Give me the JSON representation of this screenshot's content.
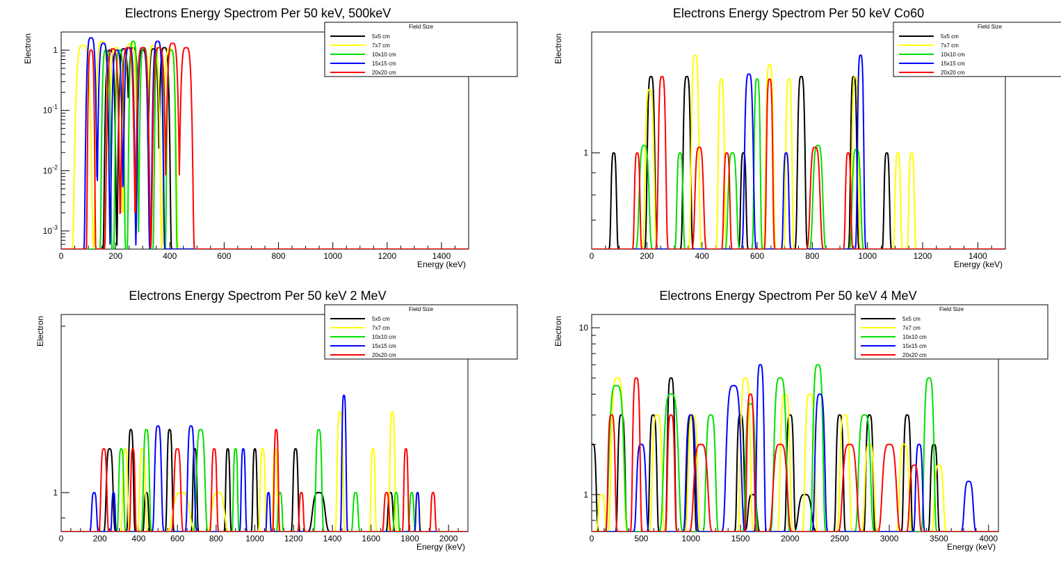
{
  "series_colors": {
    "5x5 cm": "#000000",
    "7x7 cm": "#ffff00",
    "10x10 cm": "#00e000",
    "15x15 cm": "#0000ff",
    "20x20 cm": "#ff0000"
  },
  "chart_data": [
    {
      "type": "line",
      "title": "Electrons Energy Spectrom Per 50 keV, 500keV",
      "xlabel": "Energy (keV)",
      "ylabel": "Electron",
      "xlim": [
        0,
        1500
      ],
      "ylim": [
        0.0005,
        2
      ],
      "yscale": "log",
      "xticks": [
        0,
        200,
        400,
        600,
        800,
        1000,
        1200,
        1400
      ],
      "yticks": [
        {
          "value": 1,
          "base": "1",
          "exp": ""
        },
        {
          "value": 0.1,
          "base": "10",
          "exp": "-1"
        },
        {
          "value": 0.01,
          "base": "10",
          "exp": "-2"
        },
        {
          "value": 0.001,
          "base": "10",
          "exp": "-3"
        }
      ],
      "grid": false,
      "legend": {
        "title": "Field Size",
        "position": "top-right"
      },
      "baseline": 0.0005,
      "series": [
        {
          "name": "5x5 cm",
          "peaks": [
            [
              180,
              1.0,
              12
            ],
            [
              230,
              1.05,
              12
            ],
            [
              265,
              1.1,
              12
            ],
            [
              300,
              1.0,
              12
            ],
            [
              340,
              1.05,
              12
            ],
            [
              380,
              1.1,
              12
            ]
          ],
          "end": 1500
        },
        {
          "name": "7x7 cm",
          "peaks": [
            [
              80,
              1.2,
              18
            ],
            [
              150,
              1.4,
              14
            ],
            [
              200,
              1.1,
              14
            ],
            [
              255,
              1.3,
              14
            ],
            [
              300,
              1.1,
              14
            ],
            [
              340,
              1.2,
              14
            ],
            [
              400,
              1.05,
              14
            ]
          ],
          "end": 1500
        },
        {
          "name": "10x10 cm",
          "peaks": [
            [
              165,
              1.0,
              10
            ],
            [
              215,
              1.0,
              10
            ],
            [
              265,
              1.4,
              10
            ],
            [
              305,
              1.1,
              10
            ],
            [
              360,
              1.1,
              10
            ],
            [
              405,
              1.0,
              10
            ]
          ],
          "end": 1500
        },
        {
          "name": "15x15 cm",
          "peaks": [
            [
              110,
              1.6,
              12
            ],
            [
              155,
              1.3,
              12
            ],
            [
              205,
              1.0,
              12
            ],
            [
              250,
              1.1,
              12
            ],
            [
              300,
              1.1,
              12
            ],
            [
              355,
              1.4,
              12
            ]
          ],
          "end": 1500
        },
        {
          "name": "20x20 cm",
          "peaks": [
            [
              110,
              1.0,
              8
            ],
            [
              190,
              1.05,
              14
            ],
            [
              245,
              1.1,
              14
            ],
            [
              300,
              1.1,
              14
            ],
            [
              360,
              1.1,
              14
            ],
            [
              410,
              1.3,
              14
            ],
            [
              460,
              1.1,
              14
            ]
          ],
          "end": 1500
        }
      ]
    },
    {
      "type": "line",
      "title": "Electrons Energy Spectrom Per 50 keV Co60",
      "xlabel": "Energy (keV)",
      "ylabel": "Electron",
      "xlim": [
        0,
        1500
      ],
      "ylim": [
        0.6,
        1.9
      ],
      "yscale": "log",
      "xticks": [
        0,
        200,
        400,
        600,
        800,
        1000,
        1200,
        1400
      ],
      "yticks": [
        {
          "value": 1,
          "base": "1",
          "exp": ""
        }
      ],
      "grid": false,
      "legend": {
        "title": "Field Size",
        "position": "top-right"
      },
      "baseline": 0.6,
      "series": [
        {
          "name": "5x5 cm",
          "peaks": [
            [
              80,
              1.0,
              9
            ],
            [
              215,
              1.5,
              12
            ],
            [
              345,
              1.5,
              12
            ],
            [
              550,
              1.0,
              9
            ],
            [
              760,
              1.5,
              12
            ],
            [
              950,
              1.5,
              10
            ],
            [
              1070,
              1.0,
              9
            ]
          ],
          "end": 1500
        },
        {
          "name": "7x7 cm",
          "peaks": [
            [
              210,
              1.4,
              14
            ],
            [
              375,
              1.68,
              12
            ],
            [
              470,
              1.48,
              10
            ],
            [
              645,
              1.6,
              12
            ],
            [
              715,
              1.48,
              10
            ],
            [
              955,
              1.5,
              10
            ],
            [
              1110,
              1.0,
              9
            ],
            [
              1160,
              1.0,
              9
            ]
          ],
          "end": 1500
        },
        {
          "name": "10x10 cm",
          "peaks": [
            [
              190,
              1.04,
              16
            ],
            [
              320,
              1.0,
              10
            ],
            [
              510,
              1.0,
              14
            ],
            [
              600,
              1.48,
              10
            ],
            [
              820,
              1.04,
              16
            ],
            [
              960,
              1.02,
              14
            ]
          ],
          "end": 1500
        },
        {
          "name": "15x15 cm",
          "peaks": [
            [
              570,
              1.52,
              14
            ],
            [
              705,
              1.0,
              9
            ],
            [
              975,
              1.68,
              10
            ]
          ],
          "end": 1500
        },
        {
          "name": "20x20 cm",
          "peaks": [
            [
              165,
              1.0,
              9
            ],
            [
              255,
              1.5,
              12
            ],
            [
              390,
              1.03,
              14
            ],
            [
              490,
              1.0,
              10
            ],
            [
              645,
              1.48,
              10
            ],
            [
              810,
              1.03,
              16
            ],
            [
              930,
              1.0,
              9
            ]
          ],
          "end": 1500
        }
      ]
    },
    {
      "type": "line",
      "title": "Electrons Energy Spectrom Per 50 keV 2 MeV",
      "xlabel": "Energy (keV)",
      "ylabel": "Electron",
      "xlim": [
        0,
        2100
      ],
      "ylim": [
        0.85,
        2.1
      ],
      "yscale": "log",
      "xticks": [
        0,
        200,
        400,
        600,
        800,
        1000,
        1200,
        1400,
        1600,
        1800,
        2000
      ],
      "yticks": [
        {
          "value": 1,
          "base": "1",
          "exp": ""
        }
      ],
      "grid": false,
      "legend": {
        "title": "Field Size",
        "position": "top-right"
      },
      "baseline": 0.85,
      "series": [
        {
          "name": "5x5 cm",
          "peaks": [
            [
              250,
              1.2,
              16
            ],
            [
              360,
              1.3,
              12
            ],
            [
              440,
              1.0,
              10
            ],
            [
              560,
              1.3,
              12
            ],
            [
              690,
              1.2,
              10
            ],
            [
              860,
              1.2,
              10
            ],
            [
              1000,
              1.2,
              10
            ],
            [
              1210,
              1.2,
              12
            ],
            [
              1330,
              1.0,
              30
            ],
            [
              1700,
              1.0,
              12
            ]
          ],
          "end": 2100
        },
        {
          "name": "7x7 cm",
          "peaks": [
            [
              330,
              1.2,
              12
            ],
            [
              420,
              1.2,
              14
            ],
            [
              620,
              1.0,
              40
            ],
            [
              810,
              1.0,
              30
            ],
            [
              1040,
              1.2,
              12
            ],
            [
              1105,
              1.2,
              10
            ],
            [
              1440,
              1.4,
              14
            ],
            [
              1610,
              1.2,
              10
            ],
            [
              1710,
              1.4,
              12
            ],
            [
              1840,
              1.0,
              10
            ]
          ],
          "end": 2100
        },
        {
          "name": "10x10 cm",
          "peaks": [
            [
              310,
              1.2,
              12
            ],
            [
              440,
              1.3,
              14
            ],
            [
              720,
              1.3,
              20
            ],
            [
              900,
              1.2,
              10
            ],
            [
              1130,
              1.0,
              10
            ],
            [
              1330,
              1.3,
              14
            ],
            [
              1520,
              1.0,
              12
            ],
            [
              1730,
              1.0,
              10
            ],
            [
              1810,
              1.0,
              10
            ]
          ],
          "end": 2100
        },
        {
          "name": "15x15 cm",
          "peaks": [
            [
              170,
              1.0,
              12
            ],
            [
              270,
              1.0,
              8
            ],
            [
              500,
              1.32,
              16
            ],
            [
              670,
              1.32,
              16
            ],
            [
              940,
              1.2,
              10
            ],
            [
              1070,
              1.0,
              8
            ],
            [
              1460,
              1.5,
              10
            ],
            [
              1840,
              1.0,
              8
            ]
          ],
          "end": 2100
        },
        {
          "name": "20x20 cm",
          "peaks": [
            [
              220,
              1.2,
              14
            ],
            [
              370,
              1.2,
              10
            ],
            [
              600,
              1.2,
              16
            ],
            [
              790,
              1.2,
              12
            ],
            [
              1110,
              1.3,
              10
            ],
            [
              1240,
              1.0,
              10
            ],
            [
              1680,
              1.0,
              12
            ],
            [
              1780,
              1.2,
              10
            ],
            [
              1920,
              1.0,
              10
            ]
          ],
          "end": 2100
        }
      ]
    },
    {
      "type": "line",
      "title": "Electrons Energy Spectrom Per 50 keV 4 MeV",
      "xlabel": "Energy (keV)",
      "ylabel": "Electron",
      "xlim": [
        0,
        4100
      ],
      "ylim": [
        0.6,
        12
      ],
      "yscale": "log",
      "xticks": [
        0,
        500,
        1000,
        1500,
        2000,
        2500,
        3000,
        3500,
        4000
      ],
      "yticks": [
        {
          "value": 1,
          "base": "1",
          "exp": ""
        },
        {
          "value": 10,
          "base": "10",
          "exp": ""
        }
      ],
      "grid": false,
      "legend": {
        "title": "Field Size",
        "position": "top-right"
      },
      "baseline": 0.6,
      "series": [
        {
          "name": "5x5 cm",
          "peaks": [
            [
              10,
              2.0,
              30
            ],
            [
              300,
              3.0,
              30
            ],
            [
              620,
              3.0,
              30
            ],
            [
              800,
              5.0,
              30
            ],
            [
              1000,
              3.0,
              30
            ],
            [
              1500,
              3.0,
              30
            ],
            [
              1620,
              1.0,
              40
            ],
            [
              2000,
              3.0,
              30
            ],
            [
              2150,
              1.0,
              60
            ],
            [
              2500,
              3.0,
              30
            ],
            [
              2800,
              3.0,
              30
            ],
            [
              3180,
              3.0,
              30
            ],
            [
              3450,
              2.0,
              30
            ]
          ],
          "end": 4100
        },
        {
          "name": "7x7 cm",
          "peaks": [
            [
              100,
              1.0,
              30
            ],
            [
              260,
              5.0,
              50
            ],
            [
              660,
              3.0,
              40
            ],
            [
              1020,
              3.0,
              40
            ],
            [
              1550,
              5.0,
              40
            ],
            [
              1950,
              4.0,
              40
            ],
            [
              2200,
              4.0,
              40
            ],
            [
              2550,
              3.0,
              40
            ],
            [
              2800,
              2.0,
              40
            ],
            [
              3150,
              2.0,
              40
            ],
            [
              3500,
              1.5,
              40
            ]
          ],
          "end": 4100
        },
        {
          "name": "10x10 cm",
          "peaks": [
            [
              250,
              4.5,
              60
            ],
            [
              800,
              4.0,
              60
            ],
            [
              1200,
              3.0,
              40
            ],
            [
              1600,
              3.5,
              40
            ],
            [
              1900,
              5.0,
              50
            ],
            [
              2280,
              6.0,
              40
            ],
            [
              2750,
              3.0,
              50
            ],
            [
              3400,
              5.0,
              40
            ]
          ],
          "end": 4100
        },
        {
          "name": "15x15 cm",
          "peaks": [
            [
              500,
              2.0,
              40
            ],
            [
              1000,
              3.0,
              40
            ],
            [
              1430,
              4.5,
              60
            ],
            [
              1700,
              6.0,
              30
            ],
            [
              2300,
              4.0,
              40
            ],
            [
              3300,
              2.0,
              30
            ],
            [
              3800,
              1.2,
              40
            ]
          ],
          "end": 4100
        },
        {
          "name": "20x20 cm",
          "peaks": [
            [
              200,
              3.0,
              30
            ],
            [
              450,
              5.0,
              30
            ],
            [
              800,
              3.0,
              30
            ],
            [
              1100,
              2.0,
              60
            ],
            [
              1600,
              4.0,
              30
            ],
            [
              1900,
              2.0,
              60
            ],
            [
              2600,
              2.0,
              60
            ],
            [
              3000,
              2.0,
              60
            ],
            [
              3250,
              1.5,
              40
            ]
          ],
          "end": 4100
        }
      ]
    }
  ]
}
